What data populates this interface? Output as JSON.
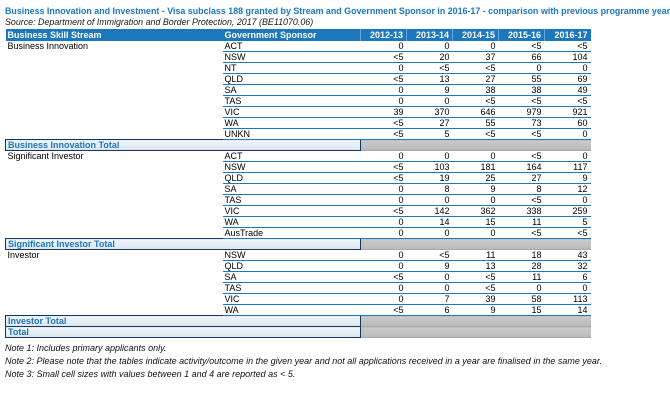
{
  "title": "Business Innovation and Investment - Visa subclass 188 granted by Stream and Government Sponsor in 2016-17 - comparison with previous programme year",
  "source": "Source: Department of Immigration and Border Protection, 2017 (BE11070.06)",
  "table": {
    "columns": [
      "Business Skill Stream",
      "Government Sponsor",
      "2012-13",
      "2013-14",
      "2014-15",
      "2015-16",
      "2016-17"
    ],
    "groups": [
      {
        "stream": "Business Innovation",
        "total_label": "Business Innovation Total",
        "rows": [
          {
            "sponsor": "ACT",
            "values": [
              "0",
              "0",
              "0",
              "<5",
              "<5"
            ]
          },
          {
            "sponsor": "NSW",
            "values": [
              "<5",
              "20",
              "37",
              "66",
              "104"
            ]
          },
          {
            "sponsor": "NT",
            "values": [
              "0",
              "<5",
              "<5",
              "0",
              "0"
            ]
          },
          {
            "sponsor": "QLD",
            "values": [
              "<5",
              "13",
              "27",
              "55",
              "69"
            ]
          },
          {
            "sponsor": "SA",
            "values": [
              "0",
              "9",
              "38",
              "38",
              "49"
            ]
          },
          {
            "sponsor": "TAS",
            "values": [
              "0",
              "0",
              "<5",
              "<5",
              "<5"
            ]
          },
          {
            "sponsor": "VIC",
            "values": [
              "39",
              "370",
              "646",
              "979",
              "921"
            ]
          },
          {
            "sponsor": "WA",
            "values": [
              "<5",
              "27",
              "55",
              "73",
              "60"
            ]
          },
          {
            "sponsor": "UNKN",
            "values": [
              "<5",
              "5",
              "<5",
              "<5",
              "0"
            ]
          }
        ]
      },
      {
        "stream": "Significant Investor",
        "total_label": "Significant Investor Total",
        "rows": [
          {
            "sponsor": "ACT",
            "values": [
              "0",
              "0",
              "0",
              "<5",
              "0"
            ]
          },
          {
            "sponsor": "NSW",
            "values": [
              "<5",
              "103",
              "181",
              "164",
              "117"
            ]
          },
          {
            "sponsor": "QLD",
            "values": [
              "<5",
              "19",
              "25",
              "27",
              "9"
            ]
          },
          {
            "sponsor": "SA",
            "values": [
              "0",
              "8",
              "9",
              "8",
              "12"
            ]
          },
          {
            "sponsor": "TAS",
            "values": [
              "0",
              "0",
              "0",
              "<5",
              "0"
            ]
          },
          {
            "sponsor": "VIC",
            "values": [
              "<5",
              "142",
              "362",
              "338",
              "259"
            ]
          },
          {
            "sponsor": "WA",
            "values": [
              "0",
              "14",
              "15",
              "11",
              "5"
            ]
          },
          {
            "sponsor": "AusTrade",
            "values": [
              "0",
              "0",
              "0",
              "<5",
              "<5"
            ]
          }
        ]
      },
      {
        "stream": "Investor",
        "total_label": "Investor Total",
        "rows": [
          {
            "sponsor": "NSW",
            "values": [
              "0",
              "<5",
              "11",
              "18",
              "43"
            ]
          },
          {
            "sponsor": "QLD",
            "values": [
              "0",
              "9",
              "13",
              "28",
              "32"
            ]
          },
          {
            "sponsor": "SA",
            "values": [
              "<5",
              "0",
              "<5",
              "11",
              "6"
            ]
          },
          {
            "sponsor": "TAS",
            "values": [
              "0",
              "0",
              "<5",
              "0",
              "0"
            ]
          },
          {
            "sponsor": "VIC",
            "values": [
              "0",
              "7",
              "39",
              "58",
              "113"
            ]
          },
          {
            "sponsor": "WA",
            "values": [
              "<5",
              "6",
              "9",
              "15",
              "14"
            ]
          }
        ]
      }
    ],
    "grand_total_label": "Total"
  },
  "notes": [
    "Note 1: Includes primary applicants only.",
    "Note 2: Please note that the tables indicate activity/outcome in the given year and not all applications received in a year are finalised in the same year.",
    "Note 3: Small cell sizes with values between 1 and 4 are reported as < 5."
  ],
  "colors": {
    "header_bg": "#1b78be",
    "row_line": "#1b78be",
    "total_text": "#1b78be",
    "total_label_bg": "#dbe5f0",
    "total_border": "#17365d",
    "suppressed_cell_gray": "#bfbfbf"
  }
}
